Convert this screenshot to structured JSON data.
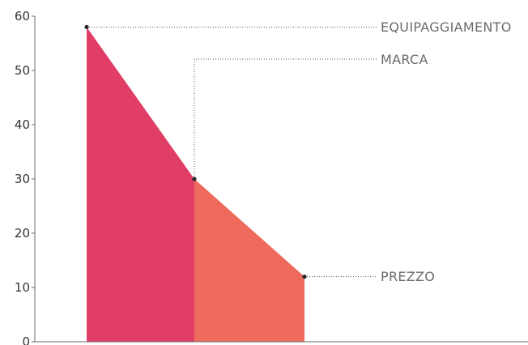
{
  "chart_data": {
    "type": "area",
    "ylim": [
      0,
      60
    ],
    "yticks": [
      0,
      10,
      20,
      30,
      40,
      50,
      60
    ],
    "grid": false,
    "segments": [
      {
        "name": "EQUIPAGGIAMENTO",
        "color": "#e03e66",
        "start": 58,
        "end": 30
      },
      {
        "name": "MARCA",
        "color": "#ee6a5c",
        "start": 30,
        "end": 12
      }
    ],
    "points": [
      {
        "label": "EQUIPAGGIAMENTO",
        "value": 58
      },
      {
        "label": "MARCA",
        "value": 30
      },
      {
        "label": "PREZZO",
        "value": 12
      }
    ]
  }
}
